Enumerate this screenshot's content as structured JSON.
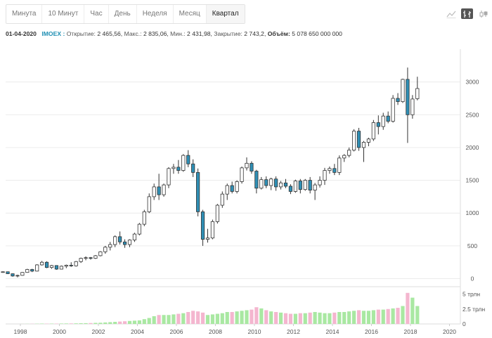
{
  "tabs": [
    {
      "label": "Минута",
      "active": false
    },
    {
      "label": "10 Минут",
      "active": false
    },
    {
      "label": "Час",
      "active": false
    },
    {
      "label": "День",
      "active": false
    },
    {
      "label": "Неделя",
      "active": false
    },
    {
      "label": "Месяц",
      "active": false
    },
    {
      "label": "Квартал",
      "active": true
    }
  ],
  "tools": [
    {
      "icon": "line-chart-icon",
      "active": false
    },
    {
      "icon": "ohlc-bars-icon",
      "active": true
    },
    {
      "icon": "candlestick-icon",
      "active": false
    }
  ],
  "info": {
    "date": "01-04-2020",
    "ticker": "IMOEX :",
    "open_label": "Открытие:",
    "open_value": "2 465,56,",
    "high_label": "Макс.:",
    "high_value": "2 835,06,",
    "low_label": "Мин.:",
    "low_value": "2 431,98,",
    "close_label": "Закрытие:",
    "close_value": "2 743,2,",
    "volume_label": "Объём:",
    "volume_value": "5 078 650 000 000"
  },
  "colors": {
    "up_fill": "#ffffff",
    "down_fill": "#2f8fb5",
    "candle_outline": "#333333",
    "volume_up": "#a9e8a2",
    "volume_down": "#f4b6cf",
    "grid": "#ececec",
    "accent": "#1f8fb3"
  },
  "chart_data": {
    "type": "candlestick",
    "x_tick_labels": [
      "1998",
      "2000",
      "2002",
      "2004",
      "2006",
      "2008",
      "2010",
      "2012",
      "2014",
      "2016",
      "2018",
      "2020"
    ],
    "price_axis": {
      "ticks": [
        0,
        500,
        1000,
        1500,
        2000,
        2500,
        3000
      ],
      "range": [
        -80,
        3500
      ],
      "grid": true
    },
    "volume_axis": {
      "tick_labels": [
        "5 трлн",
        "2.5 трлн",
        "0"
      ],
      "tick_values": [
        5,
        2.5,
        0
      ],
      "unit": "трлн",
      "range": [
        0,
        6
      ]
    },
    "start": "1997-07-01",
    "period": "quarter",
    "candles": [
      [
        100,
        110,
        90,
        105,
        0.0
      ],
      [
        105,
        108,
        70,
        75,
        0.0
      ],
      [
        75,
        80,
        30,
        40,
        0.0
      ],
      [
        40,
        60,
        20,
        50,
        0.0
      ],
      [
        50,
        100,
        45,
        95,
        0.01
      ],
      [
        95,
        150,
        90,
        140,
        0.02
      ],
      [
        140,
        150,
        100,
        115,
        0.03
      ],
      [
        115,
        220,
        110,
        210,
        0.04
      ],
      [
        210,
        270,
        200,
        250,
        0.06
      ],
      [
        250,
        265,
        160,
        170,
        0.05
      ],
      [
        170,
        210,
        150,
        200,
        0.05
      ],
      [
        200,
        205,
        135,
        145,
        0.06
      ],
      [
        145,
        200,
        140,
        190,
        0.07
      ],
      [
        190,
        215,
        160,
        205,
        0.08
      ],
      [
        205,
        250,
        180,
        195,
        0.09
      ],
      [
        195,
        270,
        185,
        260,
        0.1
      ],
      [
        260,
        320,
        240,
        310,
        0.12
      ],
      [
        310,
        340,
        280,
        320,
        0.13
      ],
      [
        320,
        330,
        290,
        310,
        0.15
      ],
      [
        310,
        360,
        300,
        350,
        0.18
      ],
      [
        350,
        420,
        340,
        410,
        0.2
      ],
      [
        410,
        500,
        380,
        480,
        0.25
      ],
      [
        480,
        560,
        430,
        520,
        0.3
      ],
      [
        520,
        660,
        480,
        640,
        0.35
      ],
      [
        640,
        720,
        520,
        560,
        0.4
      ],
      [
        560,
        600,
        470,
        520,
        0.45
      ],
      [
        520,
        600,
        480,
        590,
        0.5
      ],
      [
        590,
        700,
        560,
        680,
        0.55
      ],
      [
        680,
        850,
        660,
        830,
        0.6
      ],
      [
        830,
        1050,
        800,
        1020,
        0.8
      ],
      [
        1020,
        1300,
        1000,
        1250,
        1.0
      ],
      [
        1250,
        1450,
        1200,
        1400,
        1.3
      ],
      [
        1400,
        1600,
        1200,
        1280,
        1.5
      ],
      [
        1280,
        1450,
        1250,
        1430,
        1.5
      ],
      [
        1430,
        1700,
        1380,
        1680,
        1.5
      ],
      [
        1680,
        1750,
        1600,
        1700,
        1.6
      ],
      [
        1700,
        1810,
        1600,
        1650,
        1.7
      ],
      [
        1650,
        1900,
        1630,
        1880,
        1.8
      ],
      [
        1880,
        1960,
        1700,
        1750,
        2.0
      ],
      [
        1750,
        1820,
        1550,
        1620,
        2.2
      ],
      [
        1620,
        1680,
        950,
        1020,
        2.1
      ],
      [
        1020,
        1050,
        500,
        600,
        1.9
      ],
      [
        600,
        760,
        550,
        620,
        1.5
      ],
      [
        620,
        900,
        600,
        870,
        1.6
      ],
      [
        870,
        1140,
        840,
        1120,
        1.7
      ],
      [
        1120,
        1330,
        1080,
        1290,
        1.8
      ],
      [
        1290,
        1450,
        1200,
        1420,
        2.0
      ],
      [
        1420,
        1480,
        1300,
        1330,
        2.0
      ],
      [
        1330,
        1500,
        1300,
        1480,
        2.1
      ],
      [
        1480,
        1710,
        1450,
        1690,
        2.2
      ],
      [
        1690,
        1850,
        1650,
        1760,
        2.3
      ],
      [
        1760,
        1790,
        1600,
        1640,
        2.4
      ],
      [
        1640,
        1660,
        1300,
        1380,
        2.8
      ],
      [
        1380,
        1550,
        1360,
        1510,
        2.6
      ],
      [
        1510,
        1560,
        1380,
        1420,
        2.3
      ],
      [
        1420,
        1540,
        1350,
        1520,
        2.1
      ],
      [
        1520,
        1560,
        1340,
        1400,
        2.0
      ],
      [
        1400,
        1490,
        1360,
        1460,
        1.9
      ],
      [
        1460,
        1520,
        1380,
        1410,
        1.8
      ],
      [
        1410,
        1440,
        1290,
        1330,
        1.7
      ],
      [
        1330,
        1510,
        1310,
        1490,
        1.7
      ],
      [
        1490,
        1520,
        1300,
        1360,
        1.8
      ],
      [
        1360,
        1520,
        1340,
        1500,
        1.8
      ],
      [
        1500,
        1550,
        1300,
        1350,
        1.9
      ],
      [
        1350,
        1460,
        1200,
        1430,
        2.0
      ],
      [
        1430,
        1560,
        1390,
        1500,
        1.9
      ],
      [
        1500,
        1690,
        1430,
        1650,
        1.8
      ],
      [
        1650,
        1710,
        1600,
        1680,
        1.8
      ],
      [
        1680,
        1750,
        1580,
        1620,
        1.9
      ],
      [
        1620,
        1880,
        1580,
        1840,
        2.0
      ],
      [
        1840,
        1900,
        1780,
        1880,
        2.0
      ],
      [
        1880,
        2000,
        1850,
        1960,
        2.1
      ],
      [
        1960,
        2280,
        1940,
        2250,
        2.2
      ],
      [
        2250,
        2300,
        1950,
        2000,
        2.3
      ],
      [
        2000,
        2100,
        1780,
        2080,
        2.2
      ],
      [
        2080,
        2150,
        2020,
        2130,
        2.2
      ],
      [
        2130,
        2420,
        2100,
        2380,
        2.3
      ],
      [
        2380,
        2490,
        2200,
        2320,
        2.4
      ],
      [
        2320,
        2530,
        2270,
        2480,
        2.4
      ],
      [
        2480,
        2550,
        2370,
        2400,
        2.5
      ],
      [
        2400,
        2800,
        2380,
        2750,
        2.6
      ],
      [
        2750,
        2830,
        2650,
        2700,
        2.7
      ],
      [
        2700,
        3050,
        2680,
        3040,
        3.0
      ],
      [
        3040,
        3220,
        2070,
        2500,
        5.2
      ],
      [
        2500,
        2800,
        2440,
        2740,
        4.4
      ],
      [
        2745,
        3080,
        2720,
        2900,
        3.0
      ]
    ]
  }
}
